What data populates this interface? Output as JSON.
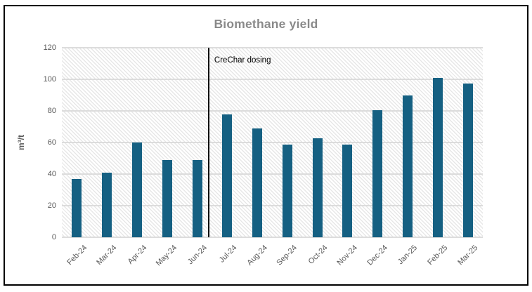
{
  "chart_data": {
    "type": "bar",
    "title": "Biomethane yield",
    "ylabel": "m³/t",
    "xlabel": "",
    "categories": [
      "Feb-24",
      "Mar-24",
      "Apr-24",
      "May-24",
      "Jun-24",
      "Jul-24",
      "Aug-24",
      "Sep-24",
      "Oct-24",
      "Nov-24",
      "Dec-24",
      "Jan-25",
      "Feb-25",
      "Mar-25"
    ],
    "values": [
      37,
      41,
      60,
      49,
      49,
      78,
      69,
      58.5,
      62.5,
      58.5,
      80.5,
      90,
      101,
      97.5
    ],
    "ylim": [
      0,
      120
    ],
    "yticks": [
      0,
      20,
      40,
      60,
      80,
      100,
      120
    ],
    "grid": true,
    "legend": false,
    "annotation": {
      "label": "CreChar dosing",
      "after_category": "Jun-24"
    },
    "colors": {
      "bar": "#156082",
      "title_text": "#8a8a8a",
      "axis_text": "#595959",
      "gridline": "#dcdcdc",
      "hatch_line": "#e7e7e7",
      "annotation_line": "#000000",
      "frame_border": "#000000",
      "background": "#ffffff"
    }
  }
}
